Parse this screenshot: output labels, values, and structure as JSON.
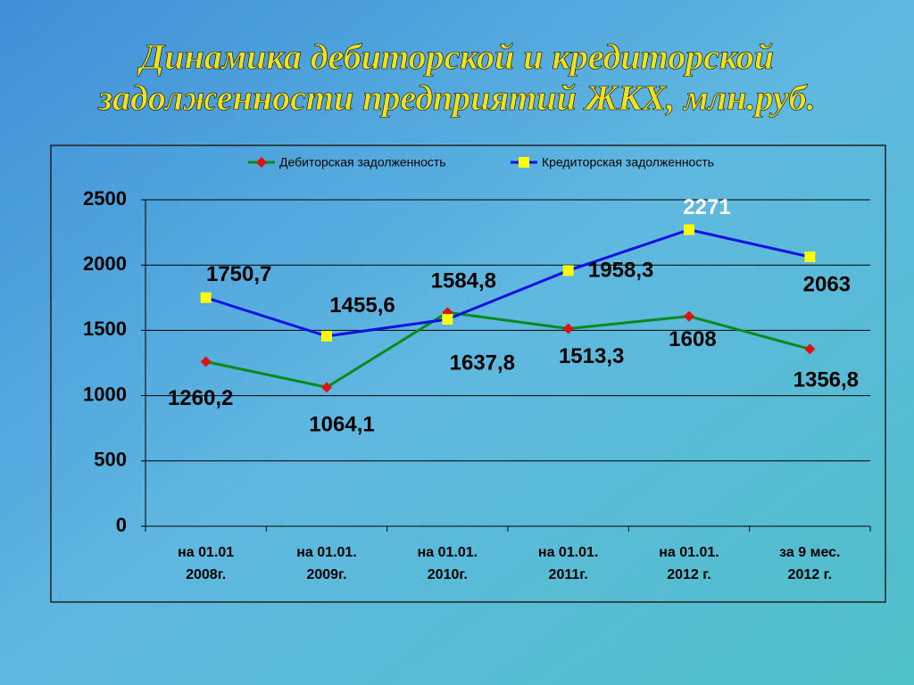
{
  "chart_data": {
    "type": "line",
    "title": [
      "Динамика дебиторской и кредиторской",
      "задолженности предприятий ЖКХ, млн.руб."
    ],
    "categories": [
      [
        "на 01.01",
        "2008г."
      ],
      [
        "на 01.01.",
        "2009г."
      ],
      [
        "на 01.01.",
        "2010г."
      ],
      [
        "на 01.01.",
        "2011г."
      ],
      [
        "на 01.01.",
        "2012 г."
      ],
      [
        "за 9 мес.",
        "2012 г."
      ]
    ],
    "series": [
      {
        "name": "Дебиторская задолженность",
        "color": "#0a8a1a",
        "marker_color": "#e01010",
        "marker": "diamond",
        "values": [
          1260.2,
          1064.1,
          1637.8,
          1513.3,
          1608,
          1356.8
        ],
        "value_labels": [
          "1260,2",
          "1064,1",
          "1637,8",
          "1513,3",
          "1608",
          "1356,8"
        ]
      },
      {
        "name": "Кредиторская задолженность",
        "color": "#1010e0",
        "marker_color": "#ffff00",
        "marker": "square",
        "values": [
          1750.7,
          1455.6,
          1584.8,
          1958.3,
          2271,
          2063
        ],
        "value_labels": [
          "1750,7",
          "1455,6",
          "1584,8",
          "1958,3",
          "2271",
          "2063"
        ]
      }
    ],
    "ylim": [
      0,
      2500
    ],
    "yticks": [
      0,
      500,
      1000,
      1500,
      2000,
      2500
    ],
    "grid": true,
    "legend": "top"
  }
}
